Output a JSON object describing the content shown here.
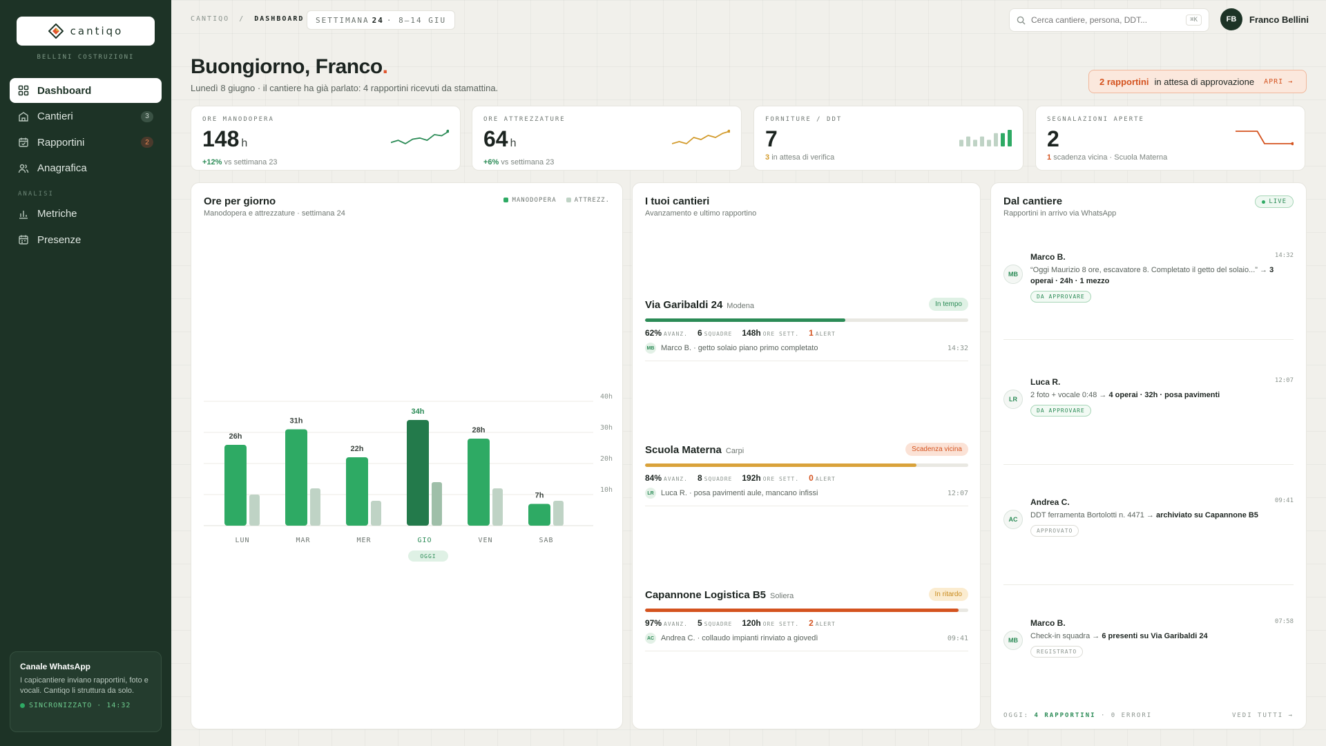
{
  "sidebar": {
    "logo_text": "cantiqo",
    "company": "BELLINI COSTRUZIONI",
    "nav": [
      {
        "label": "Dashboard",
        "badge": ""
      },
      {
        "label": "Cantieri",
        "badge": "3"
      },
      {
        "label": "Rapportini",
        "badge": "2"
      },
      {
        "label": "Anagrafica",
        "badge": ""
      }
    ],
    "section_label": "ANALISI",
    "analysis_nav": [
      {
        "label": "Metriche"
      },
      {
        "label": "Presenze"
      }
    ],
    "whatsapp": {
      "title": "Canale WhatsApp",
      "text": "I capicantiere inviano rapportini, foto e vocali. Cantiqo li struttura da solo.",
      "status": "SINCRONIZZATO · 14:32"
    }
  },
  "topbar": {
    "crumb_root": "CANTIQO",
    "crumb_sep": "/",
    "crumb_current": "DASHBOARD",
    "week_prefix": "SETTIMANA",
    "week_number": "24",
    "week_range": "· 8–14 GIU",
    "search_placeholder": "Cerca cantiere, persona, DDT...",
    "search_shortcut": "⌘K",
    "user_initials": "FB",
    "user_name": "Franco Bellini"
  },
  "greeting": {
    "title": "Buongiorno, Franco",
    "title_accent": ".",
    "subtitle": "Lunedì 8 giugno · il cantiere ha già parlato: 4 rapportini ricevuti da stamattina."
  },
  "pending": {
    "count": "2 rapportini",
    "text": "in attesa di approvazione",
    "action": "APRI →"
  },
  "kpis": [
    {
      "label": "ORE MANODOPERA",
      "value": "148",
      "unit": "h",
      "delta": "+12%",
      "sub": "vs settimana 23",
      "color": "#2b8b56",
      "spark": [
        10,
        12,
        9,
        13,
        14,
        12,
        17,
        16,
        20
      ]
    },
    {
      "label": "ORE ATTREZZATURE",
      "value": "64",
      "unit": "h",
      "delta": "+6%",
      "sub": "vs settimana 23",
      "color": "#d29a2a",
      "spark": [
        10,
        11,
        10,
        13,
        12,
        14,
        13,
        15,
        16
      ]
    },
    {
      "label": "FORNITURE / DDT",
      "value": "7",
      "unit": "",
      "delta": "3",
      "sub": "in attesa di verifica",
      "color": "#2eaa64",
      "bars": [
        2,
        3,
        2,
        3,
        2,
        4,
        4,
        5
      ]
    },
    {
      "label": "SEGNALAZIONI APERTE",
      "value": "2",
      "unit": "",
      "delta": "1",
      "sub": "scadenza vicina · Scuola Materna",
      "color": "#d4531f",
      "spark": [
        14,
        14,
        14,
        14,
        9,
        9,
        9,
        9,
        9
      ]
    }
  ],
  "hours_panel": {
    "title": "Ore per giorno",
    "subtitle": "Manodopera e attrezzature · settimana 24",
    "legend": [
      "MANODOPERA",
      "ATTREZZ."
    ],
    "today_label": "OGGI"
  },
  "chart_data": {
    "type": "bar",
    "categories": [
      "LUN",
      "MAR",
      "MER",
      "GIO",
      "VEN",
      "SAB"
    ],
    "series": [
      {
        "name": "MANODOPERA",
        "values": [
          26,
          31,
          22,
          34,
          28,
          7
        ]
      },
      {
        "name": "ATTREZZ.",
        "values": [
          10,
          12,
          8,
          14,
          12,
          8
        ]
      }
    ],
    "data_labels": [
      "26h",
      "31h",
      "22h",
      "34h",
      "28h",
      "7h"
    ],
    "y_ticks": [
      "10h",
      "20h",
      "30h",
      "40h"
    ],
    "ylim": [
      0,
      40
    ],
    "highlight_index": 3,
    "colors": {
      "main": "#2eaa64",
      "highlight": "#237a4b",
      "secondary": "#bfd3c5"
    }
  },
  "sites_panel": {
    "title": "I tuoi cantieri",
    "subtitle": "Avanzamento e ultimo rapportino",
    "stat_labels": {
      "progress": "AVANZ.",
      "teams": "SQUADRE",
      "hours": "ORE SETT.",
      "alerts": "ALERT"
    },
    "sites": [
      {
        "name": "Via Garibaldi 24",
        "city": "Modena",
        "status": "In tempo",
        "status_kind": "green",
        "progress": 62,
        "progress_label": "62%",
        "teams": "6",
        "hours": "148h",
        "alerts": "1",
        "last_initials": "MB",
        "last_text": "Marco B. · getto solaio piano primo completato",
        "last_time": "14:32",
        "bar_color": "#2b8b56"
      },
      {
        "name": "Scuola Materna",
        "city": "Carpi",
        "status": "Scadenza vicina",
        "status_kind": "orange",
        "progress": 84,
        "progress_label": "84%",
        "teams": "8",
        "hours": "192h",
        "alerts": "0",
        "last_initials": "LR",
        "last_text": "Luca R. · posa pavimenti aule, mancano infissi",
        "last_time": "12:07",
        "bar_color": "#d9a23a"
      },
      {
        "name": "Capannone Logistica B5",
        "city": "Soliera",
        "status": "In ritardo",
        "status_kind": "yellow",
        "progress": 97,
        "progress_label": "97%",
        "teams": "5",
        "hours": "120h",
        "alerts": "2",
        "last_initials": "AC",
        "last_text": "Andrea C. · collaudo impianti rinviato a giovedì",
        "last_time": "09:41",
        "bar_color": "#d4531f"
      }
    ]
  },
  "feed_panel": {
    "title": "Dal cantiere",
    "subtitle": "Rapportini in arrivo via WhatsApp",
    "live": "LIVE",
    "items": [
      {
        "initials": "MB",
        "name": "Marco B.",
        "time": "14:32",
        "text": "“Oggi Maurizio 8 ore, escavatore 8. Completato il getto del solaio...” →",
        "summary": "3 operai · 24h · 1 mezzo",
        "tag": "DA APPROVARE",
        "tag_kind": "green"
      },
      {
        "initials": "LR",
        "name": "Luca R.",
        "time": "12:07",
        "text": "2 foto + vocale 0:48 →",
        "summary": "4 operai · 32h · posa pavimenti",
        "tag": "DA APPROVARE",
        "tag_kind": "green"
      },
      {
        "initials": "AC",
        "name": "Andrea C.",
        "time": "09:41",
        "text": "DDT ferramenta Bortolotti n. 4471 →",
        "summary": "archiviato su Capannone B5",
        "tag": "APPROVATO",
        "tag_kind": "grey"
      },
      {
        "initials": "MB",
        "name": "Marco B.",
        "time": "07:58",
        "text": "Check-in squadra →",
        "summary": "6 presenti su Via Garibaldi 24",
        "tag": "REGISTRATO",
        "tag_kind": "grey"
      }
    ],
    "footer_prefix": "OGGI:",
    "footer_count": "4 RAPPORTINI",
    "footer_errors": "· 0 ERRORI",
    "footer_link": "VEDI TUTTI →"
  }
}
